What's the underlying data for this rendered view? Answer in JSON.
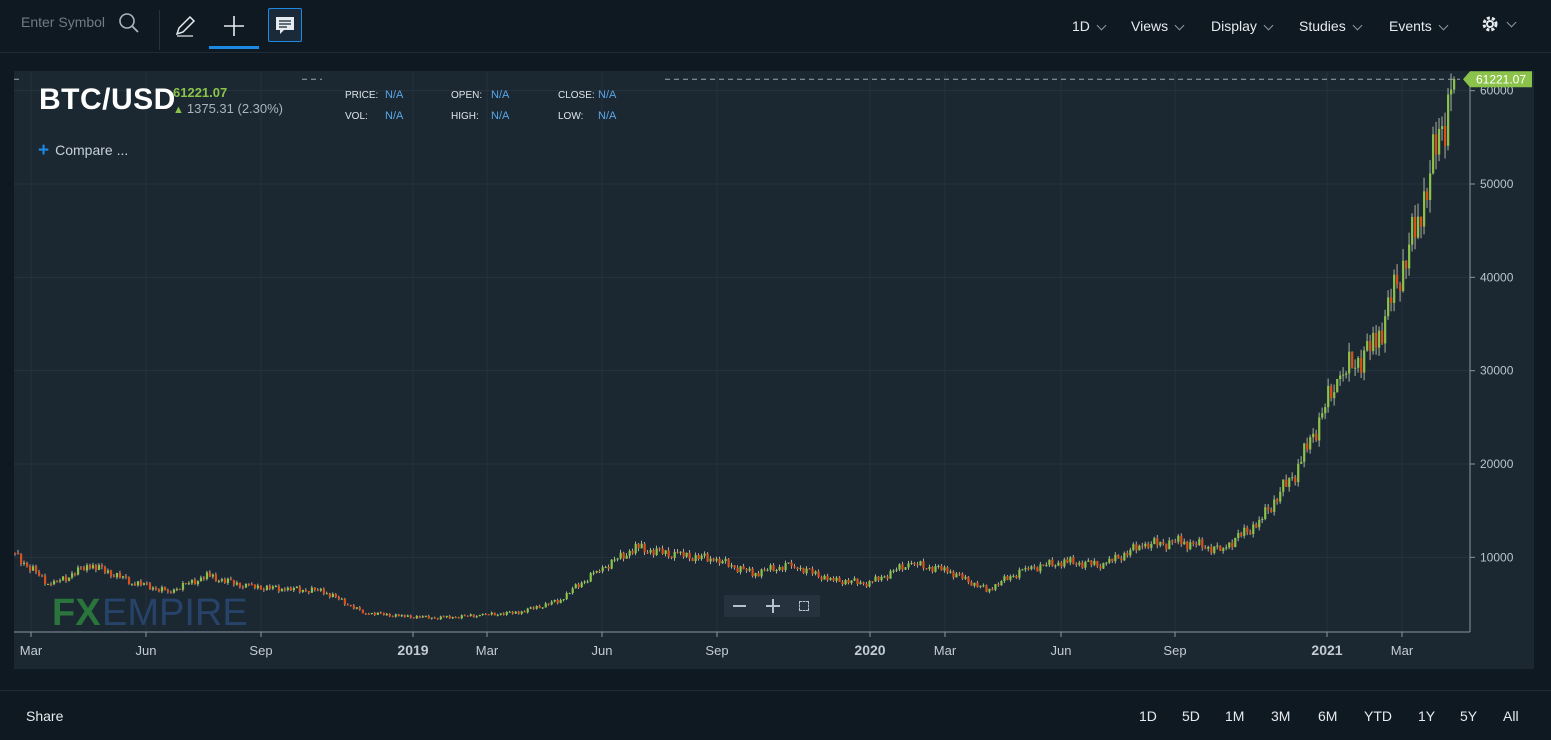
{
  "toolbar": {
    "search_placeholder": "Enter Symbol",
    "menus": [
      "1D",
      "Views",
      "Display",
      "Studies",
      "Events"
    ]
  },
  "legend": {
    "symbol": "BTC/USD",
    "price": "61221.07",
    "change": "1375.31 (2.30%)",
    "compare": "Compare ...",
    "fields": [
      {
        "label": "PRICE:",
        "value": "N/A"
      },
      {
        "label": "VOL:",
        "value": "N/A"
      },
      {
        "label": "OPEN:",
        "value": "N/A"
      },
      {
        "label": "HIGH:",
        "value": "N/A"
      },
      {
        "label": "CLOSE:",
        "value": "N/A"
      },
      {
        "label": "LOW:",
        "value": "N/A"
      }
    ]
  },
  "price_tag": "61221.07",
  "watermark": "FXEMPIRE",
  "bottom": {
    "share": "Share",
    "ranges": [
      "1D",
      "5D",
      "1M",
      "3M",
      "6M",
      "YTD",
      "1Y",
      "5Y",
      "All"
    ]
  },
  "colors": {
    "up": "#8bc34a",
    "down": "#d9501c",
    "accent": "#1e88e5",
    "bg": "#1b2832"
  },
  "chart_data": {
    "type": "candlestick",
    "y_ticks": [
      10000,
      20000,
      30000,
      40000,
      50000,
      60000
    ],
    "ylim": [
      2000,
      62000
    ],
    "x_ticks": [
      "Mar",
      "Jun",
      "Sep",
      "2019",
      "Mar",
      "Jun",
      "Sep",
      "2020",
      "Mar",
      "Jun",
      "Sep",
      "2021",
      "Mar"
    ],
    "x": [
      "2018-02",
      "2018-03",
      "2018-04",
      "2018-05",
      "2018-06",
      "2018-07",
      "2018-08",
      "2018-09",
      "2018-10",
      "2018-11",
      "2018-12",
      "2019-01",
      "2019-02",
      "2019-03",
      "2019-04",
      "2019-05",
      "2019-06",
      "2019-07",
      "2019-08",
      "2019-09",
      "2019-10",
      "2019-11",
      "2019-12",
      "2020-01",
      "2020-02",
      "2020-03",
      "2020-04",
      "2020-05",
      "2020-06",
      "2020-07",
      "2020-08",
      "2020-09",
      "2020-10",
      "2020-11",
      "2020-12",
      "2021-01",
      "2021-02",
      "2021-03"
    ],
    "close": [
      10500,
      7000,
      9200,
      7500,
      6300,
      8000,
      6900,
      6600,
      6400,
      4100,
      3700,
      3500,
      3800,
      4100,
      5300,
      8500,
      11000,
      10300,
      9800,
      8300,
      9200,
      7600,
      7200,
      9300,
      8600,
      6500,
      8800,
      9500,
      9200,
      11300,
      11700,
      10800,
      13800,
      19600,
      29000,
      33000,
      45000,
      61221.07
    ]
  }
}
